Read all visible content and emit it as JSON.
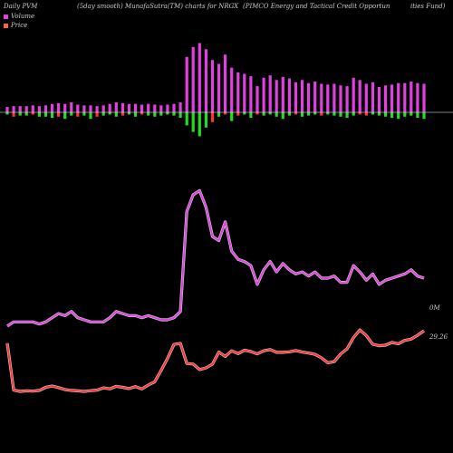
{
  "header": {
    "left": "Daily PVM",
    "mid": "(5day smooth) MunafaSutra(TM) charts for NRGX",
    "right_a": "(PIMCO Energy and Tactical Credit Opportun",
    "right_b": "ities Fund)"
  },
  "legend": [
    {
      "label": "Volume",
      "color": "#e040e0"
    },
    {
      "label": "Price",
      "color": "#ff6633"
    }
  ],
  "chart_data": {
    "type": "line",
    "x": [
      1,
      2,
      3,
      4,
      5,
      6,
      7,
      8,
      9,
      10,
      11,
      12,
      13,
      14,
      15,
      16,
      17,
      18,
      19,
      20,
      21,
      22,
      23,
      24,
      25,
      26,
      27,
      28,
      29,
      30,
      31,
      32,
      33,
      34,
      35,
      36,
      37,
      38,
      39,
      40,
      41,
      42,
      43,
      44,
      45,
      46,
      47,
      48,
      49,
      50,
      51,
      52,
      53,
      54,
      55,
      56,
      57,
      58,
      59,
      60,
      61,
      62,
      63,
      64,
      65,
      66
    ],
    "series": [
      {
        "name": "Volume",
        "color": "#e040e0",
        "label": "0M",
        "values": [
          7,
          9,
          9,
          9,
          9,
          8,
          9,
          11,
          13,
          12,
          14,
          11,
          10,
          9,
          9,
          9,
          11,
          14,
          13,
          12,
          12,
          11,
          12,
          11,
          10,
          10,
          11,
          14,
          62,
          70,
          72,
          64,
          50,
          48,
          57,
          43,
          39,
          38,
          36,
          27,
          34,
          38,
          33,
          37,
          34,
          32,
          33,
          31,
          33,
          30,
          30,
          31,
          28,
          28,
          36,
          33,
          29,
          32,
          27,
          29,
          30,
          31,
          32,
          34,
          31,
          30
        ]
      },
      {
        "name": "Price",
        "color": "#ff3333",
        "label": "29.26",
        "values": [
          29.0,
          10.5,
          10.0,
          10.2,
          10.1,
          10.4,
          11.6,
          12.1,
          11.5,
          10.7,
          10.4,
          10.2,
          10.0,
          10.3,
          10.5,
          11.4,
          11.0,
          12.0,
          11.6,
          11.1,
          11.9,
          11.0,
          12.5,
          13.8,
          18.2,
          23.0,
          28.5,
          28.9,
          21.0,
          20.8,
          18.6,
          19.3,
          20.7,
          25.5,
          23.8,
          26.0,
          24.9,
          26.2,
          25.7,
          24.8,
          26.0,
          26.5,
          25.4,
          25.4,
          25.6,
          26.1,
          25.5,
          25.1,
          24.6,
          23.2,
          21.3,
          21.7,
          24.7,
          26.8,
          31.2,
          34.2,
          32.0,
          28.6,
          28.0,
          28.2,
          29.3,
          28.8,
          30.1,
          30.6,
          32.1,
          33.9
        ]
      }
    ],
    "bars": {
      "up": [
        7,
        8,
        8,
        8,
        9,
        8,
        9,
        11,
        12,
        11,
        13,
        10,
        9,
        9,
        8,
        9,
        11,
        13,
        12,
        11,
        11,
        10,
        11,
        10,
        9,
        10,
        11,
        13,
        72,
        85,
        90,
        82,
        68,
        63,
        75,
        58,
        52,
        50,
        47,
        34,
        45,
        48,
        42,
        46,
        44,
        39,
        42,
        38,
        40,
        37,
        36,
        37,
        35,
        34,
        45,
        42,
        37,
        39,
        33,
        35,
        36,
        38,
        38,
        40,
        38,
        37
      ],
      "down": [
        2,
        4,
        3,
        3,
        2,
        4,
        4,
        5,
        4,
        6,
        3,
        4,
        3,
        6,
        4,
        3,
        2,
        4,
        3,
        2,
        4,
        2,
        3,
        4,
        3,
        2,
        3,
        5,
        12,
        18,
        22,
        14,
        9,
        4,
        2,
        8,
        3,
        2,
        5,
        2,
        3,
        2,
        4,
        6,
        3,
        2,
        4,
        3,
        2,
        3,
        2,
        3,
        4,
        5,
        3,
        2,
        3,
        2,
        3,
        4,
        5,
        6,
        4,
        3,
        5,
        6
      ],
      "down_color": [
        "#22dd22",
        "#ff3333",
        "#22dd22",
        "#22dd22",
        "#ff3333",
        "#22dd22",
        "#22dd22",
        "#22dd22",
        "#ff3333",
        "#22dd22",
        "#22dd22",
        "#ff3333",
        "#22dd22",
        "#22dd22",
        "#ff3333",
        "#22dd22",
        "#22dd22",
        "#22dd22",
        "#ff3333",
        "#22dd22",
        "#22dd22",
        "#ff3333",
        "#22dd22",
        "#22dd22",
        "#22dd22",
        "#22dd22",
        "#22dd22",
        "#22dd22",
        "#22dd22",
        "#22dd22",
        "#22dd22",
        "#22dd22",
        "#ff3333",
        "#22dd22",
        "#ff3333",
        "#22dd22",
        "#ff3333",
        "#22dd22",
        "#22dd22",
        "#ff3333",
        "#22dd22",
        "#22dd22",
        "#22dd22",
        "#22dd22",
        "#22dd22",
        "#ff3333",
        "#22dd22",
        "#22dd22",
        "#22dd22",
        "#ff3333",
        "#22dd22",
        "#22dd22",
        "#22dd22",
        "#22dd22",
        "#22dd22",
        "#ff3333",
        "#ff3333",
        "#22dd22",
        "#22dd22",
        "#22dd22",
        "#22dd22",
        "#22dd22",
        "#22dd22",
        "#22dd22",
        "#22dd22",
        "#22dd22"
      ]
    }
  }
}
